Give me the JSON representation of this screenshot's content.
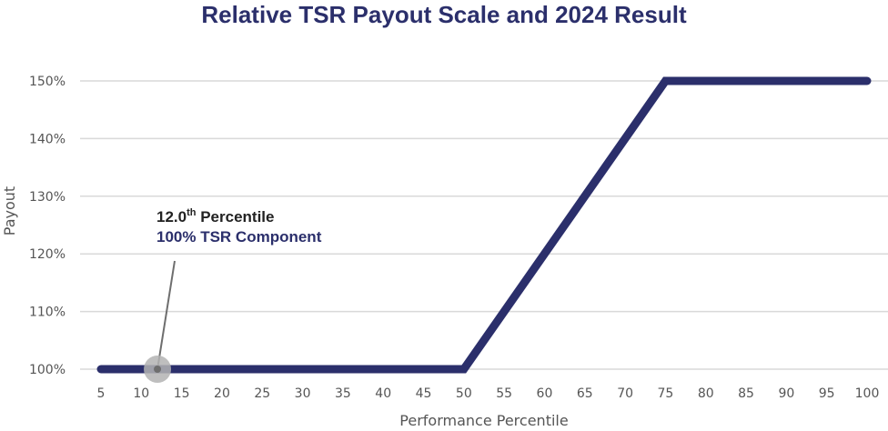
{
  "colors": {
    "title": "#2b2f6b",
    "series": "#2b2f6b",
    "grid": "#d9d9d9",
    "marker": "#b3b3b3",
    "annotation_highlight": "#2b2f6b"
  },
  "chart_data": {
    "type": "line",
    "title": "Relative TSR Payout Scale and 2024 Result",
    "xlabel": "Performance Percentile",
    "ylabel": "Payout",
    "xlim": [
      5,
      100
    ],
    "ylim": [
      100,
      150
    ],
    "x_ticks": [
      "5",
      "10",
      "15",
      "20",
      "25",
      "30",
      "35",
      "40",
      "45",
      "50",
      "55",
      "60",
      "65",
      "70",
      "75",
      "80",
      "85",
      "90",
      "95",
      "100"
    ],
    "x_tick_values": [
      5,
      10,
      15,
      20,
      25,
      30,
      35,
      40,
      45,
      50,
      55,
      60,
      65,
      70,
      75,
      80,
      85,
      90,
      95,
      100
    ],
    "y_ticks": [
      "100%",
      "110%",
      "120%",
      "130%",
      "140%",
      "150%"
    ],
    "y_tick_values": [
      100,
      110,
      120,
      130,
      140,
      150
    ],
    "grid": "horizontal",
    "series": [
      {
        "x": [
          5,
          50,
          75,
          100
        ],
        "y": [
          100,
          100,
          150,
          150
        ]
      }
    ],
    "marker": {
      "x": 12,
      "y": 100
    },
    "annotation": {
      "line1_main": "12.0",
      "line1_sup": "th",
      "line1_rest": " Percentile",
      "line2": "100% TSR Component"
    }
  }
}
